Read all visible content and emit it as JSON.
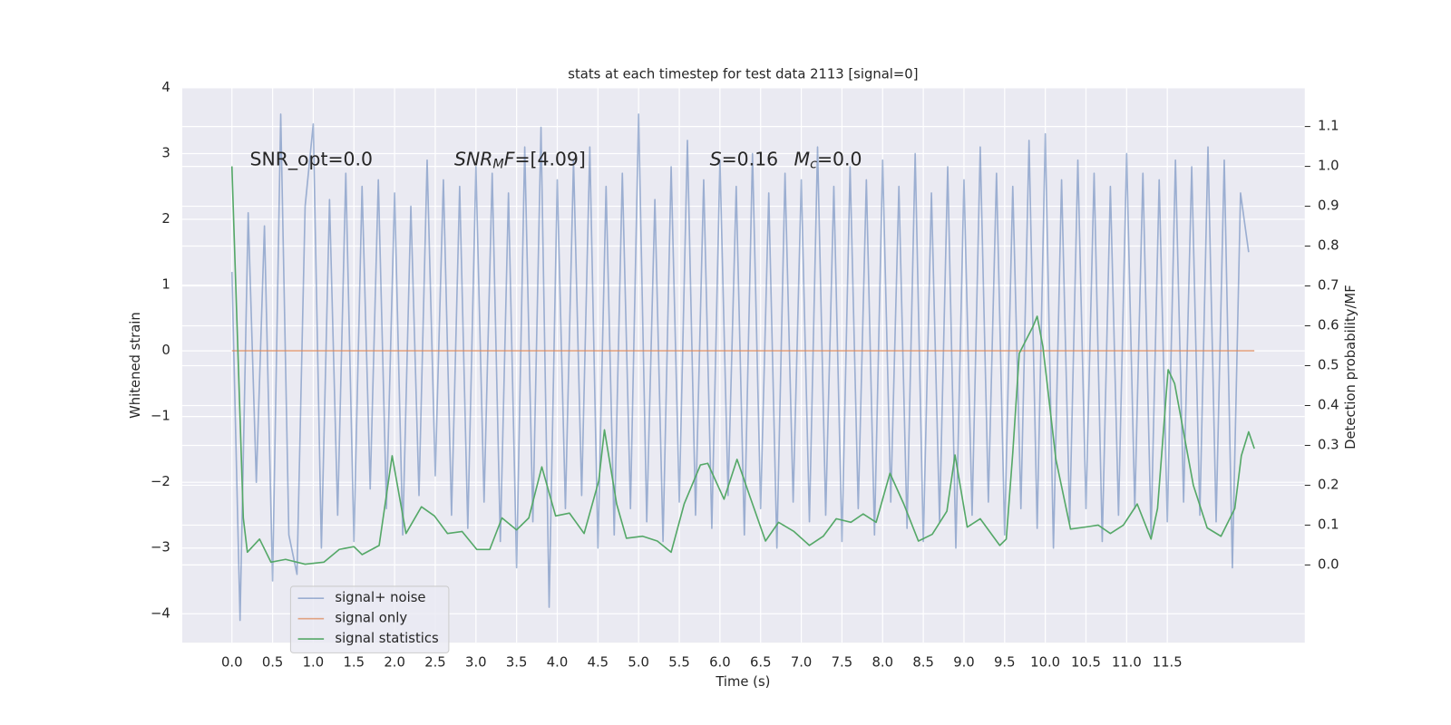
{
  "chart_data": {
    "type": "line",
    "title": "stats at each timestep for test data 2113 [signal=0]",
    "xlabel": "Time (s)",
    "ylabel": "Whitened strain",
    "y2label": "Detection probability/MF",
    "xlim": [
      -0.61,
      13.19
    ],
    "ylim": [
      -4.44,
      4
    ],
    "y2lim": [
      -0.195,
      1.197
    ],
    "xticks": [
      {
        "value": 0,
        "label": "0.0"
      },
      0.5,
      {
        "value": 1,
        "label": "1.0"
      },
      1.5,
      {
        "value": 2,
        "label": "2.0"
      },
      2.5,
      {
        "value": 3,
        "label": "3.0"
      },
      3.5,
      {
        "value": 4,
        "label": "4.0"
      },
      4.5,
      {
        "value": 5,
        "label": "5.0"
      },
      5.5,
      {
        "value": 6,
        "label": "6.0"
      },
      6.5,
      {
        "value": 7,
        "label": "7.0"
      },
      7.5,
      {
        "value": 8,
        "label": "8.0"
      },
      8.5,
      {
        "value": 9,
        "label": "9.0"
      },
      9.5,
      {
        "value": 10,
        "label": "10.0"
      },
      10.5,
      {
        "value": 11,
        "label": "11.0"
      },
      11.5
    ],
    "yticks": [
      {
        "value": -4,
        "label": "−4"
      },
      {
        "value": -3,
        "label": "−3"
      },
      {
        "value": -2,
        "label": "−2"
      },
      {
        "value": -1,
        "label": "−1"
      },
      0,
      1,
      2,
      3,
      4
    ],
    "y2ticks": [
      {
        "value": 0,
        "label": "0.0"
      },
      0.1,
      0.2,
      0.3,
      0.4,
      0.5,
      0.6,
      0.7,
      0.8,
      0.9,
      {
        "value": 1,
        "label": "1.0"
      },
      1.1
    ],
    "grid": true,
    "legend": "lower left",
    "annotations": [
      {
        "parts": [
          {
            "text": "SNR_opt=0.0"
          }
        ]
      },
      {
        "parts": [
          {
            "text": "SNR",
            "italic": true
          },
          {
            "text": "M",
            "italic": true,
            "sub": true
          },
          {
            "text": "F",
            "italic": true
          },
          {
            "text": "=[4.09]"
          }
        ]
      },
      {
        "parts": [
          {
            "text": "S",
            "italic": true
          },
          {
            "text": "=0.16"
          }
        ]
      },
      {
        "parts": [
          {
            "text": "M",
            "italic": true
          },
          {
            "text": "c",
            "italic": true,
            "sub": true
          },
          {
            "text": "=0.0"
          }
        ]
      }
    ],
    "series": [
      {
        "name": "signal+ noise",
        "color": "#4c72b0",
        "opacity": 0.5,
        "x": [
          0,
          0.1,
          0.2,
          0.3,
          0.4,
          0.5,
          0.6,
          0.7,
          0.8,
          0.9,
          1,
          1.1,
          1.2,
          1.3,
          1.4,
          1.5,
          1.6,
          1.7,
          1.8,
          1.9,
          2,
          2.1,
          2.2,
          2.3,
          2.4,
          2.5,
          2.6,
          2.7,
          2.8,
          2.9,
          3,
          3.1,
          3.2,
          3.3,
          3.4,
          3.5,
          3.6,
          3.7,
          3.8,
          3.9,
          4,
          4.1,
          4.2,
          4.3,
          4.4,
          4.5,
          4.6,
          4.7,
          4.8,
          4.9,
          5,
          5.1,
          5.2,
          5.3,
          5.4,
          5.5,
          5.6,
          5.7,
          5.8,
          5.9,
          6,
          6.1,
          6.2,
          6.3,
          6.4,
          6.5,
          6.6,
          6.7,
          6.8,
          6.9,
          7,
          7.1,
          7.2,
          7.3,
          7.4,
          7.5,
          7.6,
          7.7,
          7.8,
          7.9,
          8,
          8.1,
          8.2,
          8.3,
          8.4,
          8.5,
          8.6,
          8.7,
          8.8,
          8.9,
          9,
          9.1,
          9.2,
          9.3,
          9.4,
          9.5,
          9.6,
          9.7,
          9.8,
          9.9,
          10,
          10.1,
          10.2,
          10.3,
          10.4,
          10.5,
          10.6,
          10.7,
          10.8,
          10.9,
          11,
          11.1,
          11.2,
          11.3,
          11.4,
          11.5,
          11.6,
          11.7,
          11.8,
          11.9,
          12,
          12.1,
          12.2,
          12.3,
          12.4,
          12.5
        ],
        "values": [
          1.2,
          -4.1,
          2.1,
          -2.0,
          1.9,
          -3.5,
          3.6,
          -2.8,
          -3.4,
          2.2,
          3.45,
          -3.0,
          2.3,
          -2.5,
          2.7,
          -2.9,
          2.5,
          -2.1,
          2.6,
          -2.4,
          2.4,
          -2.8,
          2.2,
          -2.2,
          2.9,
          -1.9,
          2.6,
          -2.5,
          2.5,
          -2.7,
          2.8,
          -2.3,
          2.7,
          -2.9,
          2.4,
          -3.3,
          3.1,
          -2.6,
          3.4,
          -3.9,
          2.6,
          -2.4,
          2.9,
          -2.2,
          3.1,
          -3.0,
          2.5,
          -2.8,
          2.7,
          -2.4,
          3.6,
          -2.6,
          2.3,
          -2.9,
          2.8,
          -2.3,
          3.2,
          -2.5,
          2.6,
          -2.7,
          2.9,
          -2.2,
          2.5,
          -2.8,
          3.0,
          -2.4,
          2.4,
          -3.0,
          2.7,
          -2.3,
          2.6,
          -2.6,
          3.1,
          -2.5,
          2.5,
          -2.9,
          2.8,
          -2.4,
          2.6,
          -2.8,
          2.9,
          -2.3,
          2.5,
          -2.7,
          3.0,
          -2.9,
          2.4,
          -2.6,
          2.8,
          -3.0,
          2.6,
          -2.5,
          3.1,
          -2.3,
          2.7,
          -2.8,
          2.5,
          -2.4,
          3.2,
          -2.7,
          3.3,
          -3.0,
          2.6,
          -2.6,
          2.9,
          -2.4,
          2.7,
          -2.9,
          2.5,
          -2.5,
          3.0,
          -2.4,
          2.7,
          -2.8,
          2.6,
          -2.6,
          2.9,
          -2.3,
          2.8,
          -2.5,
          3.1,
          -2.6,
          2.9,
          -3.3,
          2.4,
          1.5
        ]
      },
      {
        "name": "signal only",
        "color": "#dd8452",
        "opacity": 0.7,
        "x": [
          0,
          12.57
        ],
        "values": [
          0,
          0
        ]
      },
      {
        "name": "signal statistics",
        "color": "#55a868",
        "opacity": 1,
        "axis": "y2",
        "x": [
          0,
          0.14,
          0.19,
          0.34,
          0.48,
          0.66,
          0.9,
          1.13,
          1.32,
          1.5,
          1.6,
          1.81,
          1.97,
          2.14,
          2.33,
          2.49,
          2.65,
          2.83,
          3.01,
          3.17,
          3.32,
          3.5,
          3.65,
          3.81,
          3.98,
          4.15,
          4.33,
          4.51,
          4.58,
          4.73,
          4.85,
          5.05,
          5.23,
          5.4,
          5.56,
          5.76,
          5.85,
          6.05,
          6.21,
          6.38,
          6.56,
          6.72,
          6.91,
          7.1,
          7.27,
          7.43,
          7.61,
          7.76,
          7.92,
          8.09,
          8.26,
          8.44,
          8.61,
          8.79,
          8.89,
          9.04,
          9.2,
          9.44,
          9.52,
          9.6,
          9.68,
          9.85,
          9.9,
          9.97,
          10.13,
          10.31,
          10.49,
          10.65,
          10.8,
          10.96,
          11.13,
          11.3,
          11.38,
          11.51,
          11.59,
          11.82,
          11.99,
          12.16,
          12.33,
          12.41,
          12.5,
          12.57
        ],
        "values": [
          1.0,
          0.118,
          0.032,
          0.065,
          0.007,
          0.014,
          0.002,
          0.007,
          0.039,
          0.046,
          0.026,
          0.049,
          0.274,
          0.079,
          0.146,
          0.123,
          0.079,
          0.084,
          0.039,
          0.039,
          0.118,
          0.088,
          0.118,
          0.246,
          0.123,
          0.13,
          0.079,
          0.211,
          0.339,
          0.153,
          0.067,
          0.072,
          0.06,
          0.032,
          0.153,
          0.251,
          0.255,
          0.165,
          0.265,
          0.165,
          0.06,
          0.107,
          0.084,
          0.049,
          0.072,
          0.116,
          0.107,
          0.128,
          0.107,
          0.23,
          0.153,
          0.06,
          0.077,
          0.135,
          0.276,
          0.095,
          0.116,
          0.049,
          0.065,
          0.281,
          0.531,
          0.599,
          0.624,
          0.548,
          0.265,
          0.09,
          0.095,
          0.1,
          0.079,
          0.1,
          0.153,
          0.065,
          0.142,
          0.49,
          0.455,
          0.2,
          0.093,
          0.072,
          0.142,
          0.274,
          0.334,
          0.292
        ]
      }
    ]
  }
}
